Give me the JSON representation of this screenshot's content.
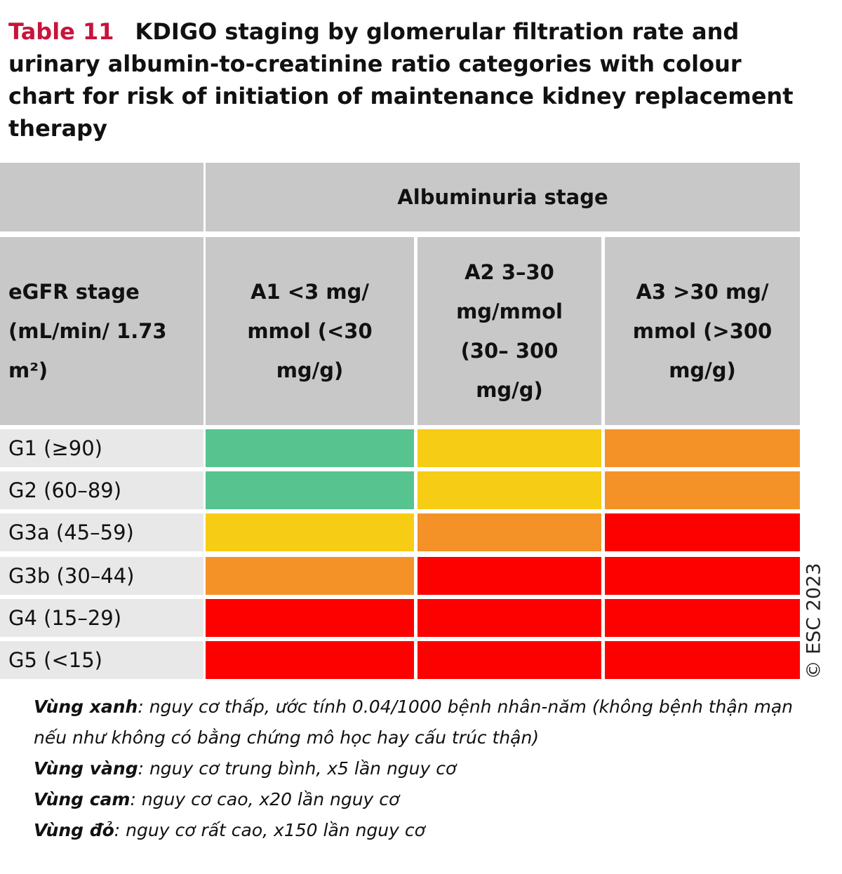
{
  "title": {
    "label": "Table 11",
    "text": "KDIGO staging by glomerular filtration rate and urinary albumin-to-creatinine ratio categories with colour chart for risk of initiation of maintenance kidney replacement therapy"
  },
  "table": {
    "group_header": "Albuminuria stage",
    "row_header": "eGFR stage (mL/min/ 1.73 m²)",
    "columns": [
      "A1 <3 mg/ mmol (<30 mg/g)",
      "A2 3–30 mg/mmol (30– 300 mg/g)",
      "A3 >30 mg/ mmol (>300 mg/g)"
    ],
    "rows": [
      {
        "label": "G1 (≥90)",
        "cells": [
          "#57c38f",
          "#f7cc14",
          "#f49228"
        ]
      },
      {
        "label": "G2 (60–89)",
        "cells": [
          "#57c38f",
          "#f7cc14",
          "#f49228"
        ]
      },
      {
        "label": "G3a (45–59)",
        "cells": [
          "#f7cc14",
          "#f49228",
          "#fd0000"
        ]
      },
      {
        "label": "G3b (30–44)",
        "cells": [
          "#f49228",
          "#fd0000",
          "#fd0000"
        ]
      },
      {
        "label": "G4 (15–29)",
        "cells": [
          "#fd0000",
          "#fd0000",
          "#fd0000"
        ]
      },
      {
        "label": "G5 (<15)",
        "cells": [
          "#fd0000",
          "#fd0000",
          "#fd0000"
        ]
      }
    ]
  },
  "copyright": "© ESC 2023",
  "notes": [
    {
      "term": "Vùng xanh",
      "text": ": nguy cơ thấp, ước tính  0.04/1000 bệnh nhân-năm (không bệnh thận mạn nếu như không có bằng chứng mô học hay cấu trúc thận)"
    },
    {
      "term": "Vùng vàng",
      "text": ": nguy cơ trung bình, x5 lần nguy cơ"
    },
    {
      "term": "Vùng cam",
      "text": ": nguy cơ cao, x20 lần nguy cơ"
    },
    {
      "term": "Vùng đỏ",
      "text": ": nguy cơ rất cao, x150 lần nguy cơ"
    }
  ]
}
